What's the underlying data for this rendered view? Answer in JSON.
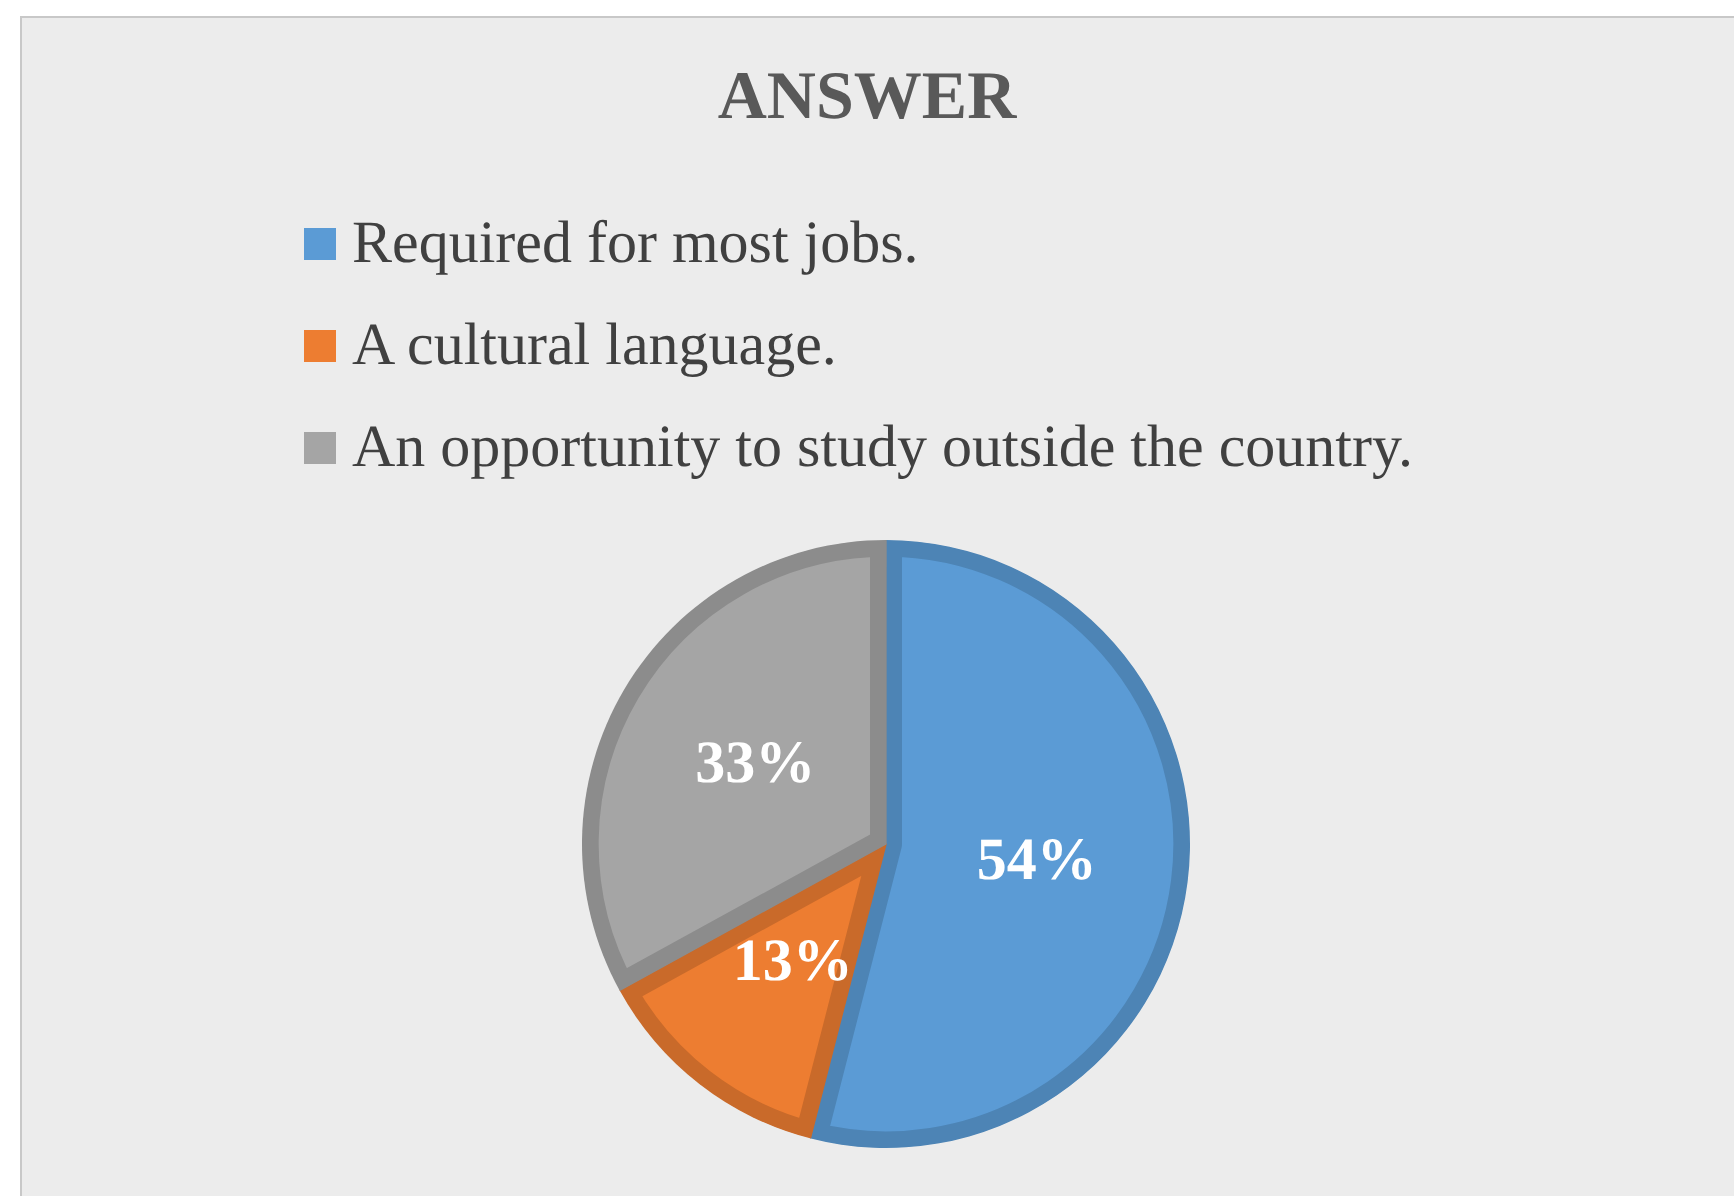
{
  "chart_data": {
    "type": "pie",
    "title": "ANSWER",
    "categories": [
      "Required for most jobs.",
      "A cultural language.",
      "An opportunity to study outside the country."
    ],
    "values": [
      54,
      13,
      33
    ],
    "colors": [
      "#5b9bd5",
      "#ed7d31",
      "#a5a5a5"
    ],
    "value_labels": [
      "54%",
      "13%",
      "33%"
    ],
    "legend": "top"
  }
}
